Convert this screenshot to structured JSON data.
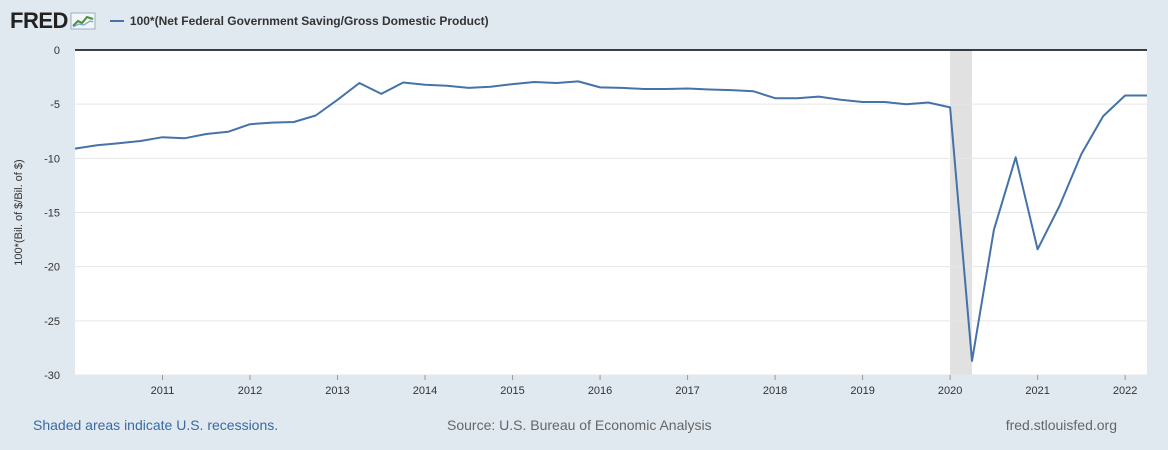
{
  "header": {
    "logo_text": "FRED",
    "logo_icon": "line-chart-icon",
    "legend_label": "100*(Net Federal Government Saving/Gross Domestic Product)"
  },
  "footer": {
    "note": "Shaded areas indicate U.S. recessions.",
    "source": "Source: U.S. Bureau of Economic Analysis",
    "site": "fred.stlouisfed.org"
  },
  "colors": {
    "series": "#4572a7",
    "recession": "#e1e1e1",
    "background": "#e1e9f0",
    "plot": "#ffffff",
    "grid": "#e6e6e6"
  },
  "chart_data": {
    "type": "line",
    "title": "",
    "xlabel": "",
    "ylabel": "100*(Bil. of $/Bil. of $)",
    "ylim": [
      -30,
      0
    ],
    "xlim": [
      2010.0,
      2022.25
    ],
    "yticks": [
      0,
      -5,
      -10,
      -15,
      -20,
      -25,
      -30
    ],
    "xticks": [
      "2011",
      "2012",
      "2013",
      "2014",
      "2015",
      "2016",
      "2017",
      "2018",
      "2019",
      "2020",
      "2021",
      "2022"
    ],
    "grid": true,
    "legend": "top-left",
    "recessions": [
      [
        2020.0,
        2020.25
      ]
    ],
    "series": [
      {
        "name": "100*(Net Federal Government Saving/Gross Domestic Product)",
        "x": [
          2010.0,
          2010.25,
          2010.5,
          2010.75,
          2011.0,
          2011.25,
          2011.5,
          2011.75,
          2012.0,
          2012.25,
          2012.5,
          2012.75,
          2013.0,
          2013.25,
          2013.5,
          2013.75,
          2014.0,
          2014.25,
          2014.5,
          2014.75,
          2015.0,
          2015.25,
          2015.5,
          2015.75,
          2016.0,
          2016.25,
          2016.5,
          2016.75,
          2017.0,
          2017.25,
          2017.5,
          2017.75,
          2018.0,
          2018.25,
          2018.5,
          2018.75,
          2019.0,
          2019.25,
          2019.5,
          2019.75,
          2020.0,
          2020.25,
          2020.5,
          2020.75,
          2021.0,
          2021.25,
          2021.5,
          2021.75,
          2022.0,
          2022.25
        ],
        "values": [
          -9.1,
          -8.8,
          -8.6,
          -8.4,
          -8.05,
          -8.15,
          -7.75,
          -7.55,
          -6.85,
          -6.7,
          -6.65,
          -6.05,
          -4.6,
          -3.05,
          -4.05,
          -3.0,
          -3.2,
          -3.3,
          -3.5,
          -3.4,
          -3.15,
          -2.95,
          -3.05,
          -2.9,
          -3.45,
          -3.5,
          -3.6,
          -3.6,
          -3.55,
          -3.65,
          -3.7,
          -3.8,
          -4.45,
          -4.45,
          -4.3,
          -4.6,
          -4.8,
          -4.8,
          -5.0,
          -4.85,
          -5.3,
          -28.7,
          -16.6,
          -9.9,
          -18.4,
          -14.4,
          -9.6,
          -6.1,
          -4.2,
          -4.2
        ]
      }
    ]
  }
}
